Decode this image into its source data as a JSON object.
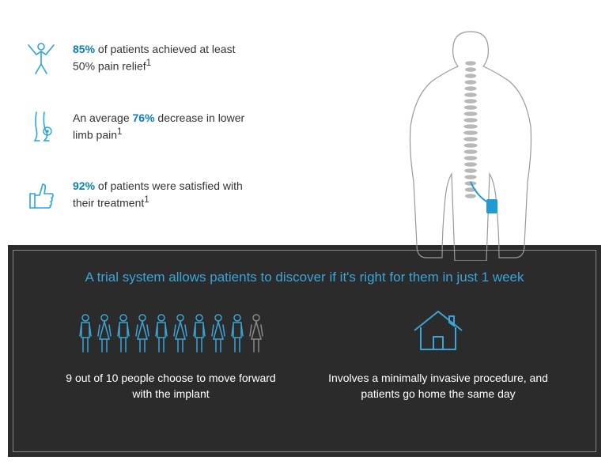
{
  "colors": {
    "accent": "#0b7fb0",
    "accent_light": "#3ba4d8",
    "icon_stroke": "#2aa5db",
    "dark_bg": "#2b2b2b",
    "dark_border": "#888888",
    "text_dark": "#333333",
    "text_light": "#ffffff",
    "spine_gray": "#b8b8b8",
    "outline_gray": "#999999",
    "implant_blue": "#1e9bd4",
    "person_inactive": "#888888"
  },
  "stats": [
    {
      "highlight": "85%",
      "rest": " of patients achieved at least 50% pain relief",
      "sup": "1",
      "icon": "person-arms-up"
    },
    {
      "pre": "An average ",
      "highlight": "76%",
      "rest": " decrease in lower limb pain",
      "sup": "1",
      "icon": "legs"
    },
    {
      "highlight": "92%",
      "rest": " of patients were satisfied with their treatment",
      "sup": "1",
      "icon": "thumbs-up"
    }
  ],
  "trial": {
    "headline": "A trial system allows patients to discover if it's right for them in just 1 week",
    "left_caption": "9 out of 10 people choose to move forward with the implant",
    "right_caption": "Involves a minimally invasive procedure, and patients go home the same day",
    "people_total": 10,
    "people_active": 9
  }
}
